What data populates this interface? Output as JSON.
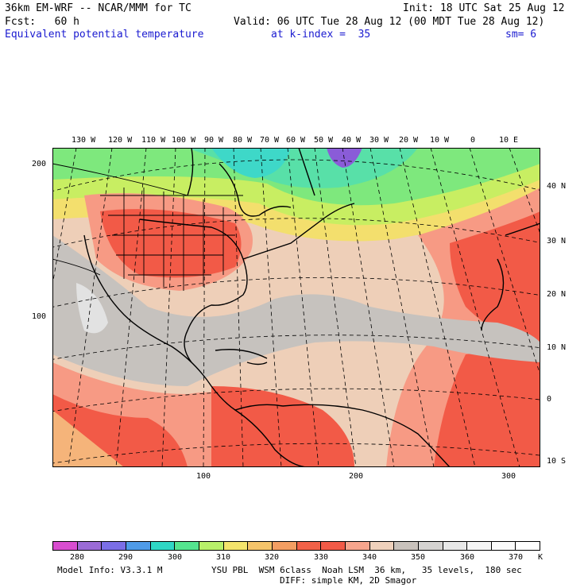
{
  "header": {
    "model": "36km EM-WRF -- NCAR/MMM for TC",
    "init": "Init: 18 UTC Sat 25 Aug 12",
    "fcst": "Fcst:   60 h",
    "valid": "Valid: 06 UTC Tue 28 Aug 12 (00 MDT Tue 28 Aug 12)",
    "field": "Equivalent potential temperature",
    "level": "at k-index =  35",
    "smoothing": "sm= 6"
  },
  "map": {
    "projection_grid": "Mercator",
    "longitude_labels": [
      "130 W",
      "120 W",
      "110 W",
      "100 W",
      "90 W",
      "80 W",
      "70 W",
      "60 W",
      "50 W",
      "40 W",
      "30 W",
      "20 W",
      "10 W",
      "0",
      "10 E"
    ],
    "latitude_labels": [
      "40 N",
      "30 N",
      "20 N",
      "10 N",
      "0",
      "10 S"
    ],
    "grid_y_labels": [
      "200",
      "100"
    ],
    "grid_x_labels": [
      "100",
      "200",
      "300"
    ],
    "colors": {
      "warm_red": "#f25a47",
      "salmon": "#f79a84",
      "tan": "#eecfb8",
      "gray": "#c6c2be",
      "light_gray": "#e2e2e2",
      "yellow": "#f3df6d",
      "lime": "#c8ee62",
      "green": "#7ee87d",
      "teal": "#3ed8c8",
      "purple": "#8a5cd8"
    }
  },
  "colorbar": {
    "unit": "K",
    "labels": [
      "280",
      "290",
      "300",
      "310",
      "320",
      "330",
      "340",
      "350",
      "360",
      "370"
    ],
    "colors": [
      "#d94dd0",
      "#9b6bd6",
      "#7b6ee6",
      "#4f9be8",
      "#2fd7c5",
      "#55e58f",
      "#b8f06a",
      "#f4e46c",
      "#f5c46a",
      "#f49e62",
      "#f26148",
      "#f25a47",
      "#f7a58d",
      "#efd1bc",
      "#c9c2bc",
      "#d5d3d1",
      "#e8e8e8",
      "#f5f5f5",
      "#fbfbfb",
      "#ffffff"
    ]
  },
  "footer": {
    "model_info": "Model Info: V3.3.1 M",
    "physics": "YSU PBL  WSM 6class  Noah LSM  36 km,   35 levels,  180 sec",
    "diffusion": "DIFF: simple KM, 2D Smagor"
  }
}
